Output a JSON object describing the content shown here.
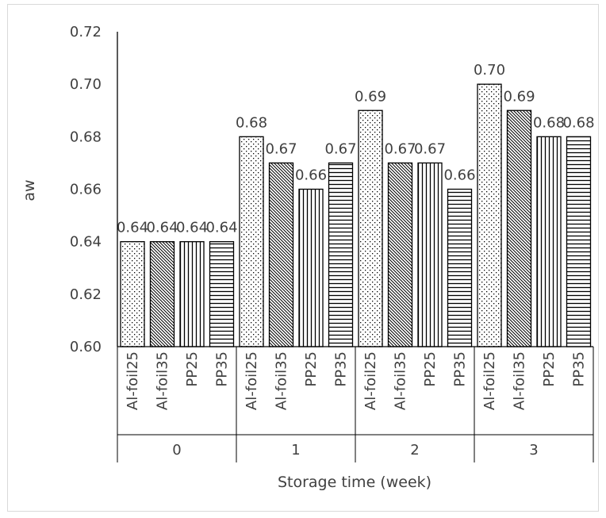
{
  "chart_data": {
    "type": "bar",
    "title": "",
    "xlabel": "Storage time (week)",
    "ylabel": "aw",
    "ylim": [
      0.6,
      0.72
    ],
    "ytick_step": 0.02,
    "ytick_labels": [
      "0.60",
      "0.62",
      "0.64",
      "0.66",
      "0.68",
      "0.70",
      "0.72"
    ],
    "grid": false,
    "legend": "none",
    "groups": [
      {
        "label": "0",
        "bars": [
          {
            "label": "Al-foil25",
            "value": 0.64,
            "data_label": "0.64",
            "pattern": "dots"
          },
          {
            "label": "Al-foil35",
            "value": 0.64,
            "data_label": "0.64",
            "pattern": "diagonal"
          },
          {
            "label": "PP25",
            "value": 0.64,
            "data_label": "0.64",
            "pattern": "vertical"
          },
          {
            "label": "PP35",
            "value": 0.64,
            "data_label": "0.64",
            "pattern": "horizontal"
          }
        ]
      },
      {
        "label": "1",
        "bars": [
          {
            "label": "Al-foil25",
            "value": 0.68,
            "data_label": "0.68",
            "pattern": "dots"
          },
          {
            "label": "Al-foil35",
            "value": 0.67,
            "data_label": "0.67",
            "pattern": "diagonal"
          },
          {
            "label": "PP25",
            "value": 0.66,
            "data_label": "0.66",
            "pattern": "vertical"
          },
          {
            "label": "PP35",
            "value": 0.67,
            "data_label": "0.67",
            "pattern": "horizontal"
          }
        ]
      },
      {
        "label": "2",
        "bars": [
          {
            "label": "Al-foil25",
            "value": 0.69,
            "data_label": "0.69",
            "pattern": "dots"
          },
          {
            "label": "Al-foil35",
            "value": 0.67,
            "data_label": "0.67",
            "pattern": "diagonal"
          },
          {
            "label": "PP25",
            "value": 0.67,
            "data_label": "0.67",
            "pattern": "vertical"
          },
          {
            "label": "PP35",
            "value": 0.66,
            "data_label": "0.66",
            "pattern": "horizontal"
          }
        ]
      },
      {
        "label": "3",
        "bars": [
          {
            "label": "Al-foil25",
            "value": 0.7,
            "data_label": "0.70",
            "pattern": "dots"
          },
          {
            "label": "Al-foil35",
            "value": 0.69,
            "data_label": "0.69",
            "pattern": "diagonal"
          },
          {
            "label": "PP25",
            "value": 0.68,
            "data_label": "0.68",
            "pattern": "vertical"
          },
          {
            "label": "PP35",
            "value": 0.68,
            "data_label": "0.68",
            "pattern": "horizontal"
          }
        ]
      }
    ],
    "colors": {
      "text": "#404040",
      "bar_stroke": "#000000",
      "pattern": "#000000",
      "frame": "#d9d9d9"
    }
  }
}
